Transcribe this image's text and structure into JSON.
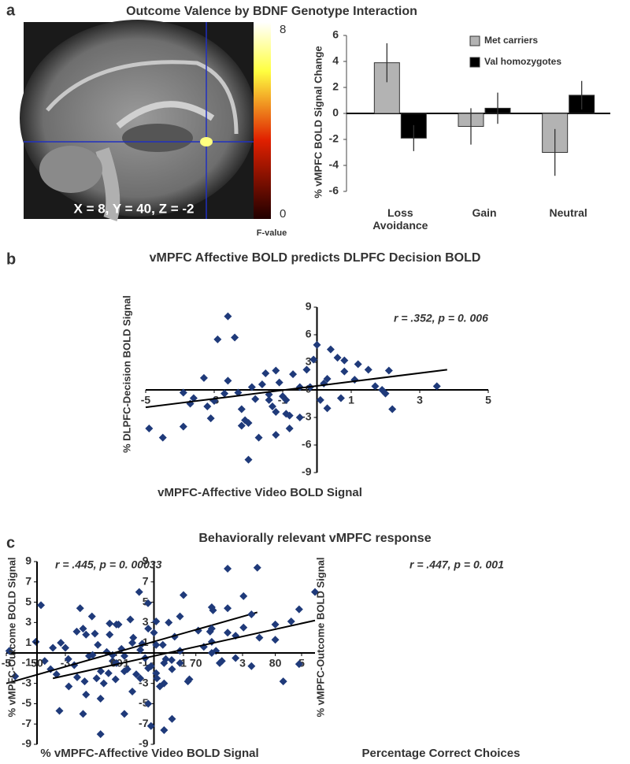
{
  "panels": [
    "a",
    "b",
    "c"
  ],
  "panel_c_title": "Behaviorally relevant vMPFC response",
  "brain_image": {
    "coordinates": "X = 8, Y = 40, Z = -2",
    "colorbar_label": "F-value",
    "colorbar_ticks": [
      0,
      8
    ]
  },
  "chart_data": [
    {
      "type": "bar",
      "title": "Outcome Valence by BDNF Genotype Interaction",
      "y_label": "% vMPFC BOLD Signal Change",
      "categories": [
        "Loss Avoidance",
        "Gain",
        "Neutral"
      ],
      "series": [
        {
          "name": "Met carriers",
          "color": "#b3b3b3",
          "values": [
            3.9,
            -1.0,
            -3.0
          ],
          "errors": [
            1.5,
            1.4,
            1.8
          ]
        },
        {
          "name": "Val homozygotes",
          "color": "#000000",
          "values": [
            -1.9,
            0.4,
            1.4
          ],
          "errors": [
            1.0,
            1.2,
            1.1
          ]
        }
      ],
      "ylim": [
        -6,
        6
      ],
      "yticks": [
        -6,
        -4,
        -2,
        0,
        2,
        4,
        6
      ],
      "legend": "upper right"
    },
    {
      "type": "scatter",
      "title": "vMPFC Affective BOLD predicts DLPFC Decision BOLD",
      "x_label": "vMPFC-Affective Video BOLD Signal",
      "y_label": "% DLPFC-Decision BOLD Signal",
      "annotation": "r = .352, p = 0. 006",
      "color": "#1f3a7a",
      "x": [
        -4.9,
        -4.5,
        -3.9,
        -3.7,
        -3.9,
        -3.6,
        -3.3,
        -3.0,
        -3.2,
        -2.9,
        -2.7,
        -2.6,
        -3.1,
        -2.6,
        -2.4,
        -2.3,
        -2.2,
        -2.1,
        -2.2,
        -2.0,
        -1.9,
        -1.8,
        -1.6,
        -1.5,
        -1.4,
        -1.3,
        -1.2,
        -1.2,
        -1.0,
        -0.9,
        -0.9,
        -0.8,
        -0.7,
        -1.1,
        -0.3,
        -0.5,
        -0.8,
        -1.2,
        -1.7,
        -2.0,
        -1.4,
        -0.2,
        -0.1,
        0.0,
        0.2,
        0.1,
        0.3,
        0.4,
        0.3,
        0.6,
        0.8,
        0.8,
        1.1,
        1.2,
        1.5,
        1.7,
        1.9,
        2.0,
        2.1,
        2.2,
        3.5,
        -0.5,
        0.7
      ],
      "values": [
        -4.2,
        -5.2,
        -4.0,
        -1.5,
        -0.3,
        -0.9,
        1.3,
        -1.2,
        -1.8,
        5.5,
        -0.4,
        1.0,
        -3.1,
        8.0,
        5.7,
        -0.3,
        -2.1,
        -3.3,
        -3.9,
        -3.6,
        0.3,
        -1.0,
        0.6,
        1.8,
        -0.5,
        -1.8,
        2.1,
        -2.4,
        -0.7,
        -1.1,
        -2.6,
        -2.8,
        1.7,
        0.8,
        2.2,
        -3.0,
        -4.2,
        -4.9,
        -5.2,
        -7.6,
        -1.1,
        0.3,
        3.3,
        4.9,
        0.7,
        -1.1,
        -2.0,
        4.4,
        1.2,
        3.5,
        2.0,
        3.2,
        1.1,
        2.8,
        2.2,
        0.4,
        0.0,
        -0.4,
        2.1,
        -2.1,
        0.4,
        0.3,
        -0.9
      ],
      "fit_line": {
        "x": [
          -5,
          3.8
        ],
        "y": [
          -1.9,
          2.2
        ]
      },
      "xlim": [
        -5,
        5
      ],
      "xticks": [
        -5,
        -3,
        -1,
        1,
        3,
        5
      ],
      "ylim": [
        -9,
        9
      ],
      "yticks": [
        -9,
        -6,
        -3,
        0,
        3,
        6,
        9
      ]
    },
    {
      "type": "scatter",
      "x_label": "% vMPFC-Affective Video BOLD Signal",
      "y_label": "% vMPFC-Outcome BOLD Signal",
      "annotation": "r = .445, p = 0. 00033",
      "color": "#1f3a7a",
      "x": [
        -4.9,
        -4.7,
        -4.0,
        -3.7,
        -3.5,
        -3.3,
        -3.2,
        -3.0,
        -2.9,
        -2.7,
        -2.6,
        -2.5,
        -2.4,
        -2.3,
        -2.4,
        -2.3,
        -2.2,
        -2.1,
        -2.0,
        -1.9,
        -1.8,
        -1.7,
        -1.6,
        -1.5,
        -1.5,
        -1.4,
        -1.3,
        -1.2,
        -1.1,
        -1.0,
        -0.9,
        -0.8,
        -0.7,
        -0.6,
        -0.5,
        -0.4,
        -0.3,
        -0.2,
        -0.1,
        0.0,
        0.1,
        0.2,
        0.3,
        0.4,
        0.5,
        0.6,
        0.7,
        1.0,
        1.2,
        1.5,
        1.9,
        2.0,
        2.1,
        2.3,
        3.5,
        -0.1,
        -1.4
      ],
      "values": [
        0.2,
        -2.3,
        1.1,
        -0.8,
        -1.6,
        -2.1,
        -5.7,
        0.5,
        -0.6,
        -1.2,
        -2.4,
        4.4,
        2.4,
        -4.1,
        -6.0,
        1.8,
        -0.3,
        3.6,
        1.9,
        0.8,
        -1.8,
        -3.0,
        0.1,
        2.9,
        1.8,
        -0.8,
        -2.6,
        2.8,
        0.4,
        -0.3,
        -1.6,
        3.3,
        1.5,
        -2.1,
        6.0,
        0.9,
        -0.5,
        4.9,
        -1.3,
        2.0,
        -2.5,
        -3.3,
        0.8,
        -0.6,
        3.0,
        -0.7,
        1.6,
        5.7,
        -2.6,
        2.2,
        2.1,
        4.2,
        0.2,
        -0.8,
        8.4,
        -7.2,
        -0.2
      ],
      "fit_line": {
        "x": [
          -5,
          3.5
        ],
        "y": [
          -3.0,
          4.0
        ]
      },
      "xlim": [
        -5,
        5
      ],
      "xticks": [
        -5,
        -3,
        -1,
        1,
        3,
        5
      ],
      "ylim": [
        -9,
        9
      ],
      "yticks": [
        -9,
        -7,
        -5,
        -3,
        -1,
        1,
        3,
        5,
        7,
        9
      ]
    },
    {
      "type": "scatter",
      "x_label": "Percentage Correct Choices",
      "y_label": "% vMPFC-Outcome BOLD Signal",
      "annotation": "r = .447, p = 0. 001",
      "color": "#1f3a7a",
      "x": [
        50.5,
        52,
        53,
        54,
        55,
        56,
        57,
        57.5,
        58,
        58,
        59,
        60,
        60,
        61,
        61,
        62,
        62,
        63,
        63,
        64,
        64,
        64,
        65,
        65,
        65,
        66,
        66,
        67,
        67,
        68,
        68,
        68,
        69,
        72,
        72,
        72,
        72,
        73,
        74,
        74,
        74,
        75,
        75,
        76,
        76,
        77,
        77,
        78,
        80,
        80,
        81,
        82,
        83,
        83,
        85,
        66,
        71
      ],
      "values": [
        4.7,
        0.5,
        1.0,
        -3.3,
        2.1,
        -2.8,
        -0.2,
        -2.5,
        -4.5,
        -8.0,
        -2.0,
        -1.0,
        2.8,
        -6.0,
        -1.8,
        1.0,
        -3.8,
        0.3,
        -2.5,
        2.4,
        -1.5,
        -5.0,
        0.8,
        3.1,
        -2.0,
        -1.0,
        -3.0,
        -6.5,
        -1.6,
        3.6,
        -1.0,
        0.2,
        -2.8,
        2.4,
        4.5,
        1.1,
        0.0,
        -1.0,
        2.0,
        8.3,
        4.4,
        1.7,
        -0.5,
        5.6,
        2.5,
        -1.3,
        3.8,
        1.5,
        2.8,
        1.3,
        -2.8,
        3.1,
        4.3,
        -1.1,
        6.0,
        -7.6,
        0.6
      ],
      "fit_line": {
        "x": [
          52,
          85
        ],
        "y": [
          -2.5,
          3.2
        ]
      },
      "xlim": [
        50,
        85
      ],
      "xticks": [
        50,
        60,
        70,
        80
      ],
      "ylim": [
        -9,
        9
      ],
      "yticks": [
        -9,
        -7,
        -5,
        -3,
        -1,
        1,
        3,
        5,
        7,
        9
      ]
    }
  ]
}
